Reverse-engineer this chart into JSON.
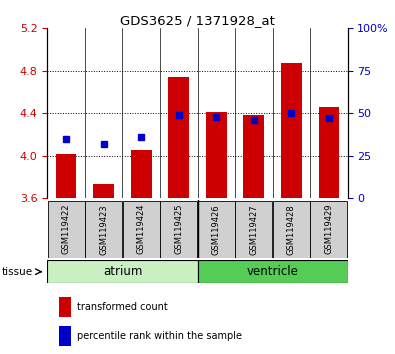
{
  "title": "GDS3625 / 1371928_at",
  "samples": [
    "GSM119422",
    "GSM119423",
    "GSM119424",
    "GSM119425",
    "GSM119426",
    "GSM119427",
    "GSM119428",
    "GSM119429"
  ],
  "red_bar_tops": [
    4.02,
    3.73,
    4.05,
    4.74,
    4.41,
    4.38,
    4.87,
    4.46
  ],
  "red_bar_bottom": 3.6,
  "blue_dot_secondary": [
    35,
    32,
    36,
    49,
    48,
    46,
    50,
    47
  ],
  "ylim_left": [
    3.6,
    5.2
  ],
  "ylim_right": [
    0,
    100
  ],
  "yticks_left": [
    3.6,
    4.0,
    4.4,
    4.8,
    5.2
  ],
  "yticks_right": [
    0,
    25,
    50,
    75,
    100
  ],
  "ytick_labels_right": [
    "0",
    "25",
    "50",
    "75",
    "100%"
  ],
  "grid_values": [
    4.0,
    4.4,
    4.8
  ],
  "tissue_groups": [
    {
      "label": "atrium",
      "start": 0,
      "end": 4,
      "color": "#c8f0c0"
    },
    {
      "label": "ventricle",
      "start": 4,
      "end": 8,
      "color": "#55cc55"
    }
  ],
  "red_color": "#cc0000",
  "blue_color": "#0000cc",
  "bar_width": 0.55,
  "left_tick_color": "#cc0000",
  "right_tick_color": "#0000cc",
  "legend_items": [
    "transformed count",
    "percentile rank within the sample"
  ],
  "bg_plot": "#ffffff",
  "bg_xticklabels": "#d0d0d0"
}
